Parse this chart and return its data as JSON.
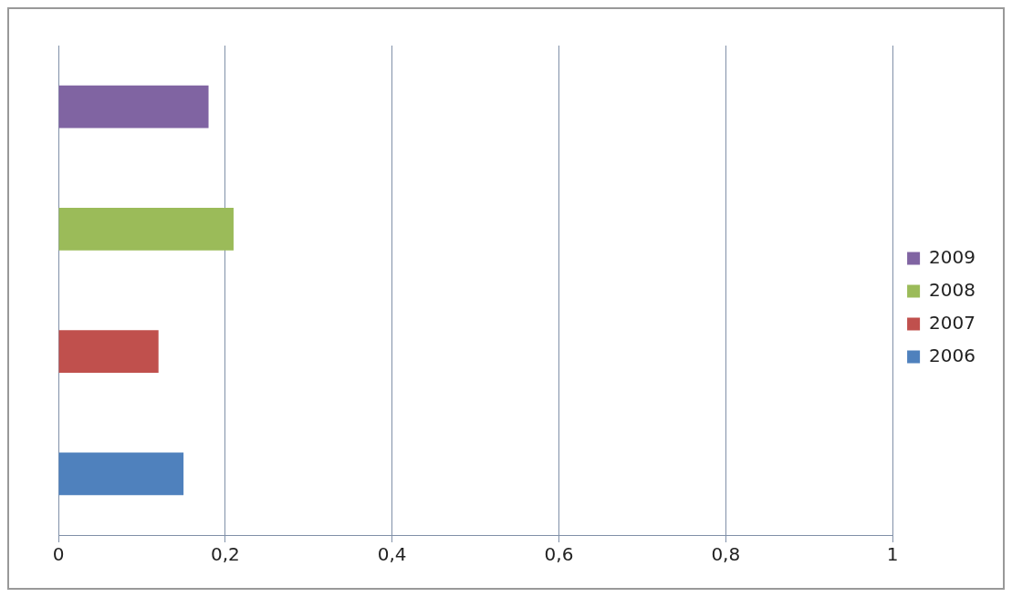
{
  "chart_data": {
    "type": "bar",
    "orientation": "horizontal",
    "categories": [
      null
    ],
    "series": [
      {
        "name": "2009",
        "color": "#8064a2",
        "values": [
          0.18
        ]
      },
      {
        "name": "2008",
        "color": "#9bbb59",
        "values": [
          0.21
        ]
      },
      {
        "name": "2007",
        "color": "#c0504d",
        "values": [
          0.12
        ]
      },
      {
        "name": "2006",
        "color": "#4f81bd",
        "values": [
          0.15
        ]
      }
    ],
    "xlim": [
      0,
      1
    ],
    "xticks": [
      0,
      {
        "value": 0.2,
        "label": "0,2"
      },
      {
        "value": 0.4,
        "label": "0,4"
      },
      {
        "value": 0.6,
        "label": "0,6"
      },
      {
        "value": 0.8,
        "label": "0,8"
      },
      1
    ],
    "grid": "x",
    "legend": "right"
  }
}
